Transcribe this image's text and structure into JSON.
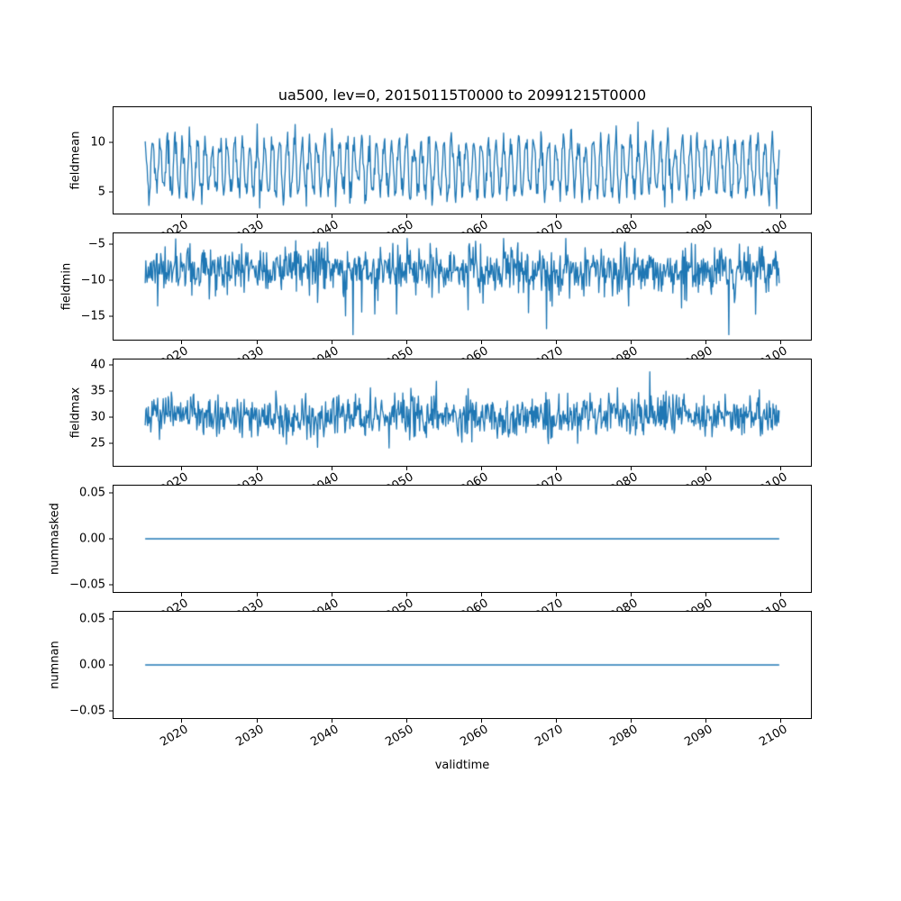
{
  "figure": {
    "title": "ua500, lev=0, 20150115T0000 to 20991215T0000",
    "xlabel": "validtime",
    "line_color": "#1f77b4",
    "background": "#ffffff"
  },
  "chart_data": [
    {
      "type": "line",
      "ylabel": "fieldmean",
      "xlim": [
        2010.8,
        2104.2
      ],
      "ylim": [
        2.7,
        13.6
      ],
      "x_ticks": [
        2020,
        2030,
        2040,
        2050,
        2060,
        2070,
        2080,
        2090,
        2100
      ],
      "x_tick_labels": [
        "2020",
        "2030",
        "2040",
        "2050",
        "2060",
        "2070",
        "2080",
        "2090",
        "2100"
      ],
      "y_ticks": [
        5,
        10
      ],
      "y_tick_labels": [
        "5",
        "10"
      ],
      "x": {
        "start": 2015.0417,
        "end": 2099.9583,
        "n": 1020
      },
      "series": [
        {
          "name": "fieldmean",
          "kind": "seasonal_noise",
          "mean": 7.4,
          "seasonal_amplitude": 2.6,
          "seasonal_phase": 0.05,
          "noise_sd": 0.75,
          "approx_range": [
            3.2,
            13.3
          ]
        }
      ]
    },
    {
      "type": "line",
      "ylabel": "fieldmin",
      "xlim": [
        2010.8,
        2104.2
      ],
      "ylim": [
        -18.3,
        -3.4
      ],
      "x_ticks": [
        2020,
        2030,
        2040,
        2050,
        2060,
        2070,
        2080,
        2090,
        2100
      ],
      "x_tick_labels": [
        "2020",
        "2030",
        "2040",
        "2050",
        "2060",
        "2070",
        "2080",
        "2090",
        "2100"
      ],
      "y_ticks": [
        -5,
        -10,
        -15
      ],
      "y_tick_labels": [
        "−5",
        "−10",
        "−15"
      ],
      "x": {
        "start": 2015.0417,
        "end": 2099.9583,
        "n": 1020
      },
      "series": [
        {
          "name": "fieldmin",
          "kind": "noise",
          "mean": -8.5,
          "noise_sd": 1.6,
          "spike_prob": 0.06,
          "spike_scale": 2.8,
          "spike_sign": -1,
          "approx_range": [
            -17.6,
            -4.1
          ]
        }
      ]
    },
    {
      "type": "line",
      "ylabel": "fieldmax",
      "xlim": [
        2010.8,
        2104.2
      ],
      "ylim": [
        20.4,
        41.3
      ],
      "x_ticks": [
        2020,
        2030,
        2040,
        2050,
        2060,
        2070,
        2080,
        2090,
        2100
      ],
      "x_tick_labels": [
        "2020",
        "2030",
        "2040",
        "2050",
        "2060",
        "2070",
        "2080",
        "2090",
        "2100"
      ],
      "y_ticks": [
        25,
        30,
        35,
        40
      ],
      "y_tick_labels": [
        "25",
        "30",
        "35",
        "40"
      ],
      "x": {
        "start": 2015.0417,
        "end": 2099.9583,
        "n": 1020
      },
      "series": [
        {
          "name": "fieldmax",
          "kind": "noise",
          "mean": 30.0,
          "noise_sd": 2.0,
          "spike_prob": 0.05,
          "spike_scale": 2.6,
          "spike_sign": 1,
          "approx_range": [
            21.9,
            39.6
          ]
        }
      ]
    },
    {
      "type": "line",
      "ylabel": "nummasked",
      "xlim": [
        2010.8,
        2104.2
      ],
      "ylim": [
        -0.0588,
        0.0588
      ],
      "x_ticks": [
        2020,
        2030,
        2040,
        2050,
        2060,
        2070,
        2080,
        2090,
        2100
      ],
      "x_tick_labels": [
        "2020",
        "2030",
        "2040",
        "2050",
        "2060",
        "2070",
        "2080",
        "2090",
        "2100"
      ],
      "y_ticks": [
        0.05,
        0.0,
        -0.05
      ],
      "y_tick_labels": [
        "0.05",
        "0.00",
        "−0.05"
      ],
      "x": {
        "start": 2015.0417,
        "end": 2099.9583,
        "n": 1020
      },
      "series": [
        {
          "name": "nummasked",
          "kind": "constant",
          "value": 0
        }
      ]
    },
    {
      "type": "line",
      "ylabel": "numnan",
      "xlim": [
        2010.8,
        2104.2
      ],
      "ylim": [
        -0.0588,
        0.0588
      ],
      "x_ticks": [
        2020,
        2030,
        2040,
        2050,
        2060,
        2070,
        2080,
        2090,
        2100
      ],
      "x_tick_labels": [
        "2020",
        "2030",
        "2040",
        "2050",
        "2060",
        "2070",
        "2080",
        "2090",
        "2100"
      ],
      "y_ticks": [
        0.05,
        0.0,
        -0.05
      ],
      "y_tick_labels": [
        "0.05",
        "0.00",
        "−0.05"
      ],
      "x": {
        "start": 2015.0417,
        "end": 2099.9583,
        "n": 1020
      },
      "series": [
        {
          "name": "numnan",
          "kind": "constant",
          "value": 0
        }
      ]
    }
  ]
}
